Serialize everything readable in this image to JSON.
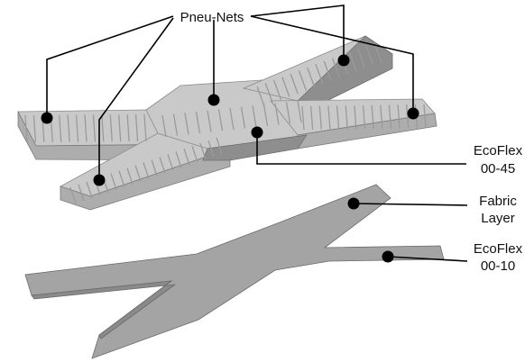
{
  "labels": {
    "pneu_nets": "Pneu-Nets",
    "ecoflex_45_line1": "EcoFlex",
    "ecoflex_45_line2": "00-45",
    "fabric_line1": "Fabric",
    "fabric_line2": "Layer",
    "ecoflex_10_line1": "EcoFlex",
    "ecoflex_10_line2": "00-10"
  },
  "colors": {
    "body_light": "#c9c9c9",
    "body_mid": "#adadad",
    "body_dark": "#8e8e8e",
    "chamber_wall": "#9a9a9a",
    "fabric_sheet": "#a4a4a4",
    "leader_line": "#000000",
    "marker": "#000000"
  }
}
